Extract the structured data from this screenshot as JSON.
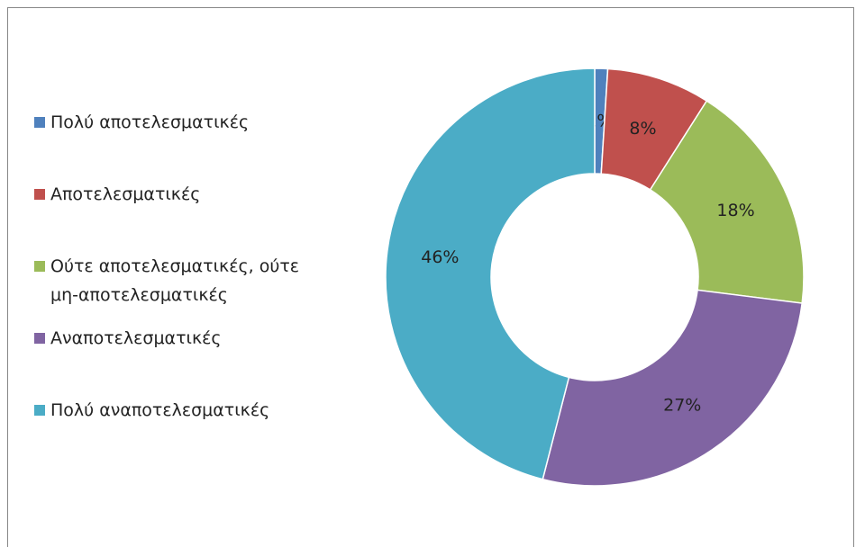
{
  "chart_data": {
    "type": "donut",
    "categories": [
      "Πολύ αποτελεσματικές",
      "Αποτελεσματικές",
      "Ούτε αποτελεσματικές, ούτε μη-αποτελεσματικές",
      "Αναποτελεσματικές",
      "Πολύ αναποτελεσματικές"
    ],
    "values": [
      1,
      8,
      18,
      27,
      46
    ],
    "value_labels": [
      "1%",
      "8%",
      "18%",
      "27%",
      "46%"
    ],
    "colors": [
      "#4f81bd",
      "#c0504d",
      "#9bbb59",
      "#8064a2",
      "#4bacc6"
    ],
    "legend": "left"
  }
}
